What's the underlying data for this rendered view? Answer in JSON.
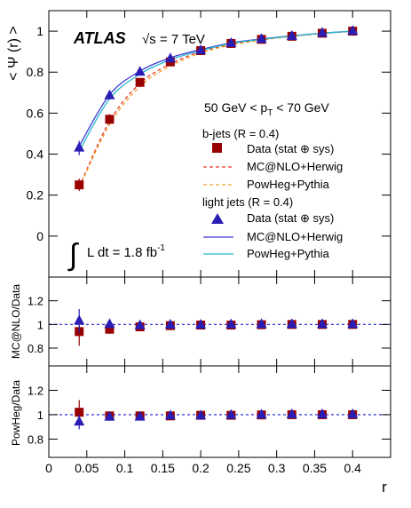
{
  "chart_data": [
    {
      "type": "line",
      "panel": "main",
      "ylabel": "< Ψ (r) >",
      "ylim": [
        -0.2,
        1.1
      ],
      "yticks": [
        "0",
        "0.2",
        "0.4",
        "0.6",
        "0.8",
        "1"
      ],
      "xlim": [
        0,
        0.45
      ],
      "annotations": {
        "atlas": "ATLAS",
        "sqrt_s": "√s = 7 TeV",
        "pt_range": "50 GeV < p",
        "pt_sub": "T",
        "pt_range_end": " < 70 GeV",
        "lumi_prefix": "L dt = 1.8 fb",
        "lumi_exp": "-1",
        "integral": "∫"
      },
      "legend": {
        "bjets_header": "b-jets (R = 0.4)",
        "bjets_data": "Data (stat ⊕ sys)",
        "bjets_mcnlo": "MC@NLO+Herwig",
        "bjets_powheg": "PowHeg+Pythia",
        "light_header": "light jets (R = 0.4)",
        "light_data": "Data (stat ⊕ sys)",
        "light_mcnlo": "MC@NLO+Herwig",
        "light_powheg": "PowHeg+Pythia"
      },
      "x": [
        0.04,
        0.08,
        0.12,
        0.16,
        0.2,
        0.24,
        0.28,
        0.32,
        0.36,
        0.4
      ],
      "series": [
        {
          "name": "b-jets Data (stat ⊕ sys)",
          "marker": "square",
          "color": "#990000",
          "values": [
            0.25,
            0.57,
            0.75,
            0.85,
            0.905,
            0.94,
            0.96,
            0.975,
            0.99,
            1.0
          ],
          "errors": [
            0.03,
            0.025,
            0.02,
            0.015,
            0.01,
            0.008,
            0.006,
            0.004,
            0.003,
            0.0
          ]
        },
        {
          "name": "light jets Data (stat ⊕ sys)",
          "marker": "triangle",
          "color": "#2a1db5",
          "values": [
            0.43,
            0.685,
            0.8,
            0.865,
            0.905,
            0.94,
            0.96,
            0.975,
            0.99,
            1.0
          ],
          "errors": [
            0.035,
            0.02,
            0.015,
            0.01,
            0.008,
            0.006,
            0.005,
            0.004,
            0.003,
            0.0
          ]
        },
        {
          "name": "b-jets MC@NLO+Herwig",
          "style": "dashed",
          "color": "#e8382c",
          "values": [
            0.24,
            0.56,
            0.745,
            0.84,
            0.9,
            0.935,
            0.958,
            0.975,
            0.989,
            1.0
          ]
        },
        {
          "name": "b-jets PowHeg+Pythia",
          "style": "dashed",
          "color": "#f3a12a",
          "values": [
            0.235,
            0.545,
            0.73,
            0.83,
            0.893,
            0.932,
            0.956,
            0.974,
            0.988,
            1.0
          ]
        },
        {
          "name": "light jets MC@NLO+Herwig",
          "style": "solid",
          "color": "#3d39d4",
          "values": [
            0.44,
            0.69,
            0.805,
            0.87,
            0.91,
            0.943,
            0.962,
            0.977,
            0.99,
            1.0
          ]
        },
        {
          "name": "light jets PowHeg+Pythia",
          "style": "solid",
          "color": "#28b7d0",
          "values": [
            0.415,
            0.67,
            0.79,
            0.86,
            0.905,
            0.94,
            0.96,
            0.976,
            0.99,
            1.0
          ]
        }
      ]
    },
    {
      "type": "scatter",
      "panel": "ratio1",
      "ylabel": "MC@NLO/Data",
      "ylim": [
        0.65,
        1.4
      ],
      "yticks": [
        "0.8",
        "1",
        "1.2"
      ],
      "xlim": [
        0,
        0.45
      ],
      "x": [
        0.04,
        0.08,
        0.12,
        0.16,
        0.2,
        0.24,
        0.28,
        0.32,
        0.36,
        0.4
      ],
      "series": [
        {
          "name": "b-jets",
          "marker": "square",
          "color": "#990000",
          "values": [
            0.94,
            0.96,
            0.98,
            0.99,
            0.995,
            0.995,
            0.998,
            1.0,
            1.0,
            1.0
          ],
          "errors": [
            0.12,
            0.04,
            0.025,
            0.015,
            0.01,
            0.008,
            0.006,
            0.004,
            0.003,
            0.0
          ]
        },
        {
          "name": "light jets",
          "marker": "triangle",
          "color": "#2a1db5",
          "values": [
            1.03,
            1.0,
            0.99,
            0.995,
            0.995,
            0.998,
            1.0,
            1.0,
            1.0,
            1.0
          ],
          "errors": [
            0.1,
            0.03,
            0.02,
            0.012,
            0.008,
            0.006,
            0.005,
            0.004,
            0.003,
            0.0
          ]
        }
      ]
    },
    {
      "type": "scatter",
      "panel": "ratio2",
      "ylabel": "PowHeg/Data",
      "ylim": [
        0.65,
        1.4
      ],
      "yticks": [
        "0.8",
        "1",
        "1.2"
      ],
      "xlim": [
        0,
        0.45
      ],
      "xlabel": "r",
      "xticks": [
        "0",
        "0.05",
        "0.1",
        "0.15",
        "0.2",
        "0.25",
        "0.3",
        "0.35",
        "0.4"
      ],
      "x": [
        0.04,
        0.08,
        0.12,
        0.16,
        0.2,
        0.24,
        0.28,
        0.32,
        0.36,
        0.4
      ],
      "series": [
        {
          "name": "b-jets",
          "marker": "square",
          "color": "#990000",
          "values": [
            1.02,
            0.99,
            0.99,
            0.99,
            0.995,
            0.995,
            0.998,
            1.0,
            1.0,
            1.0
          ],
          "errors": [
            0.1,
            0.035,
            0.02,
            0.012,
            0.01,
            0.008,
            0.006,
            0.004,
            0.003,
            0.0
          ]
        },
        {
          "name": "light jets",
          "marker": "triangle",
          "color": "#2a1db5",
          "values": [
            0.94,
            0.98,
            0.98,
            0.99,
            0.99,
            0.995,
            0.998,
            1.0,
            1.0,
            1.0
          ],
          "errors": [
            0.06,
            0.03,
            0.02,
            0.012,
            0.008,
            0.006,
            0.005,
            0.004,
            0.003,
            0.0
          ]
        }
      ]
    }
  ]
}
